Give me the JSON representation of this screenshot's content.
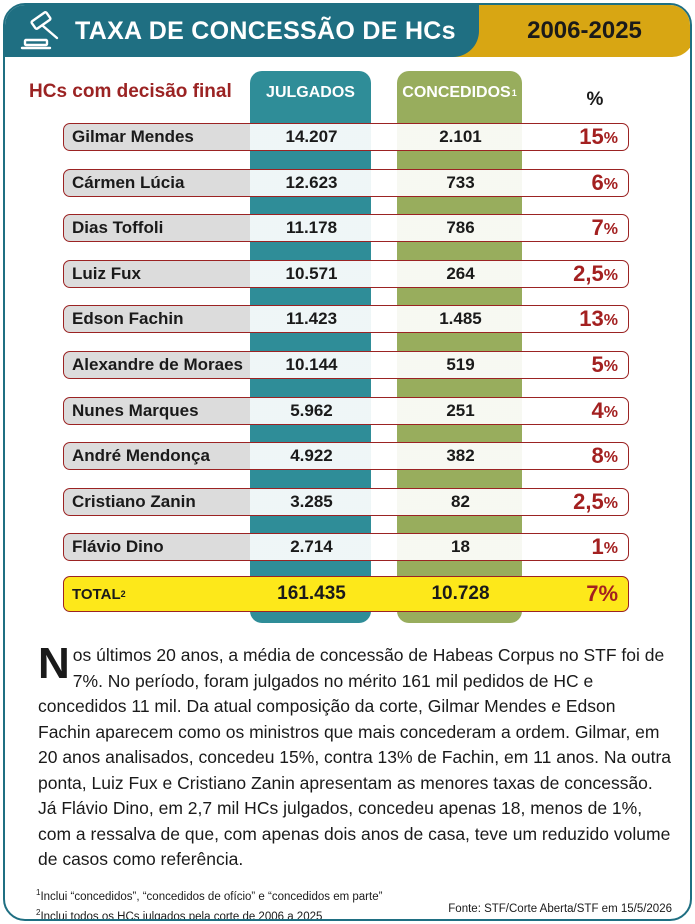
{
  "header": {
    "title": "TAXA DE CONCESSÃO DE HCs",
    "years": "2006-2025"
  },
  "table": {
    "left_label": "HCs com decisão final",
    "col_julgados": "JULGADOS",
    "col_concedidos": "CONCEDIDOS",
    "col_concedidos_note": "1",
    "col_pct": "%",
    "total_label": "TOTAL",
    "total_note": "2"
  },
  "chart_data": {
    "type": "table",
    "columns": [
      "HCs com decisão final",
      "JULGADOS",
      "CONCEDIDOS",
      "%"
    ],
    "rows": [
      {
        "name": "Gilmar Mendes",
        "julgados": "14.207",
        "concedidos": "2.101",
        "pct": "15"
      },
      {
        "name": "Cármen Lúcia",
        "julgados": "12.623",
        "concedidos": "733",
        "pct": "6"
      },
      {
        "name": "Dias Toffoli",
        "julgados": "11.178",
        "concedidos": "786",
        "pct": "7"
      },
      {
        "name": "Luiz Fux",
        "julgados": "10.571",
        "concedidos": "264",
        "pct": "2,5"
      },
      {
        "name": "Edson Fachin",
        "julgados": "11.423",
        "concedidos": "1.485",
        "pct": "13"
      },
      {
        "name": "Alexandre de Moraes",
        "julgados": "10.144",
        "concedidos": "519",
        "pct": "5"
      },
      {
        "name": "Nunes Marques",
        "julgados": "5.962",
        "concedidos": "251",
        "pct": "4"
      },
      {
        "name": "André Mendonça",
        "julgados": "4.922",
        "concedidos": "382",
        "pct": "8"
      },
      {
        "name": "Cristiano Zanin",
        "julgados": "3.285",
        "concedidos": "82",
        "pct": "2,5"
      },
      {
        "name": "Flávio Dino",
        "julgados": "2.714",
        "concedidos": "18",
        "pct": "1"
      }
    ],
    "total": {
      "julgados": "161.435",
      "concedidos": "10.728",
      "pct": "7"
    },
    "pct_symbol": "%"
  },
  "text": {
    "dropcap": "N",
    "body": "os últimos 20 anos, a média de concessão de Habeas Corpus no STF foi de 7%. No período, foram julgados no mérito 161 mil pedidos de HC e concedidos 11 mil. Da atual composição da corte, Gilmar Mendes e Edson Fachin aparecem como os ministros que mais concederam a ordem. Gilmar, em 20 anos analisados, concedeu 15%, contra 13% de Fachin, em 11 anos. Na outra ponta, Luiz Fux e Cristiano Zanin apresentam as menores taxas de concessão. Já Flávio Dino, em 2,7 mil HCs julgados, concedeu apenas 18, menos de 1%, com a ressalva de que, com apenas dois anos de casa, teve um reduzido volume de casos como referência."
  },
  "footnotes": {
    "note1_mark": "1",
    "note1": "Inclui “concedidos”, “concedidos de ofício” e “concedidos em parte”",
    "note2_mark": "2",
    "note2": "Inclui todos os HCs julgados pela corte de 2006 a 2025",
    "source": "Fonte: STF/Corte Aberta/STF em 15/5/2026"
  },
  "colors": {
    "teal": "#1f6f82",
    "gold": "#d8a613",
    "julgados": "#2f8d98",
    "concedidos": "#98ad5d",
    "accent_red": "#a32020",
    "total_yellow": "#fde81a"
  },
  "icons": {
    "header": "gavel-icon"
  }
}
